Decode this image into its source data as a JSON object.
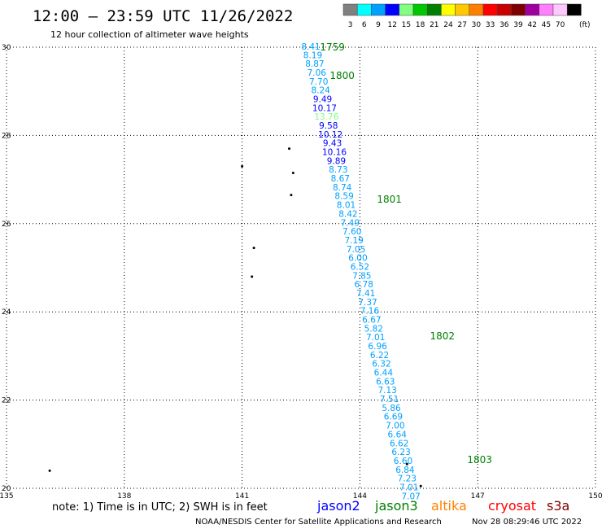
{
  "header": {
    "title": "12:00 – 23:59 UTC 11/26/2022",
    "subtitle": "12 hour collection of altimeter wave heights"
  },
  "legend": {
    "unit": "(ft)",
    "bins": [
      {
        "label": "3",
        "color": "#808080"
      },
      {
        "label": "6",
        "color": "#00ffff"
      },
      {
        "label": "9",
        "color": "#00a0ff"
      },
      {
        "label": "12",
        "color": "#0000ff"
      },
      {
        "label": "15",
        "color": "#80ff80"
      },
      {
        "label": "18",
        "color": "#00c800"
      },
      {
        "label": "21",
        "color": "#008000"
      },
      {
        "label": "24",
        "color": "#ffff00"
      },
      {
        "label": "27",
        "color": "#ffc800"
      },
      {
        "label": "30",
        "color": "#ff8000"
      },
      {
        "label": "33",
        "color": "#ff0000"
      },
      {
        "label": "36",
        "color": "#c80000"
      },
      {
        "label": "39",
        "color": "#800000"
      },
      {
        "label": "42",
        "color": "#a000a0"
      },
      {
        "label": "45",
        "color": "#ff80ff"
      },
      {
        "label": "70",
        "color": "#ffc8ff"
      },
      {
        "label": "",
        "color": "#000000"
      }
    ]
  },
  "footer": {
    "note": "note: 1) Time is in UTC; 2) SWH is in feet",
    "credit": "NOAA/NESDIS Center for Satellite Applications and Research",
    "timestamp": "Nov 28 08:29:46 UTC 2022",
    "satellites": [
      {
        "name": "jason2",
        "color": "#0000ff"
      },
      {
        "name": "jason3",
        "color": "#008000"
      },
      {
        "name": "altika",
        "color": "#ff8000"
      },
      {
        "name": "cryosat",
        "color": "#ff0000"
      },
      {
        "name": "s3a",
        "color": "#800000"
      }
    ]
  },
  "chart_data": {
    "type": "scatter",
    "xlim": [
      135,
      150
    ],
    "ylim": [
      20,
      30
    ],
    "xticks": [
      "135",
      "138",
      "141",
      "144",
      "147",
      "150"
    ],
    "yticks": [
      "20",
      "22",
      "24",
      "26",
      "28",
      "30"
    ],
    "grid": true,
    "track_color_light": "#00a0ff",
    "track_color_med": "#0000ff",
    "track_color_high": "#80ff80",
    "time_color": "#008000",
    "track": [
      {
        "lon": 142.75,
        "lat": 30.0,
        "swh": "8.41"
      },
      {
        "lon": 142.8,
        "lat": 29.81,
        "swh": "8.19"
      },
      {
        "lon": 142.85,
        "lat": 29.61,
        "swh": "8.87"
      },
      {
        "lon": 142.9,
        "lat": 29.41,
        "swh": "7.06"
      },
      {
        "lon": 142.95,
        "lat": 29.21,
        "swh": "7.70"
      },
      {
        "lon": 143.0,
        "lat": 29.01,
        "swh": "8.24"
      },
      {
        "lon": 143.05,
        "lat": 28.81,
        "swh": "9.49"
      },
      {
        "lon": 143.1,
        "lat": 28.61,
        "swh": "10.17"
      },
      {
        "lon": 143.15,
        "lat": 28.41,
        "swh": "13.76"
      },
      {
        "lon": 143.2,
        "lat": 28.21,
        "swh": "9.58"
      },
      {
        "lon": 143.25,
        "lat": 28.01,
        "swh": "10.12"
      },
      {
        "lon": 143.3,
        "lat": 27.81,
        "swh": "9.43"
      },
      {
        "lon": 143.35,
        "lat": 27.61,
        "swh": "10.16"
      },
      {
        "lon": 143.4,
        "lat": 27.41,
        "swh": "9.89"
      },
      {
        "lon": 143.45,
        "lat": 27.21,
        "swh": "8.73"
      },
      {
        "lon": 143.5,
        "lat": 27.01,
        "swh": "8.67"
      },
      {
        "lon": 143.55,
        "lat": 26.81,
        "swh": "8.74"
      },
      {
        "lon": 143.6,
        "lat": 26.61,
        "swh": "8.59"
      },
      {
        "lon": 143.65,
        "lat": 26.41,
        "swh": "8.01"
      },
      {
        "lon": 143.7,
        "lat": 26.21,
        "swh": "8.42"
      },
      {
        "lon": 143.75,
        "lat": 26.01,
        "swh": "7.49"
      },
      {
        "lon": 143.8,
        "lat": 25.81,
        "swh": "7.60"
      },
      {
        "lon": 143.85,
        "lat": 25.61,
        "swh": "7.19"
      },
      {
        "lon": 143.9,
        "lat": 25.41,
        "swh": "7.05"
      },
      {
        "lon": 143.95,
        "lat": 25.21,
        "swh": "6.00"
      },
      {
        "lon": 144.0,
        "lat": 25.01,
        "swh": "6.52"
      },
      {
        "lon": 144.05,
        "lat": 24.81,
        "swh": "7.85"
      },
      {
        "lon": 144.1,
        "lat": 24.61,
        "swh": "6.78"
      },
      {
        "lon": 144.15,
        "lat": 24.41,
        "swh": "7.41"
      },
      {
        "lon": 144.2,
        "lat": 24.21,
        "swh": "7.37"
      },
      {
        "lon": 144.25,
        "lat": 24.01,
        "swh": "7.16"
      },
      {
        "lon": 144.3,
        "lat": 23.81,
        "swh": "6.67"
      },
      {
        "lon": 144.35,
        "lat": 23.61,
        "swh": "5.82"
      },
      {
        "lon": 144.4,
        "lat": 23.41,
        "swh": "7.01"
      },
      {
        "lon": 144.45,
        "lat": 23.21,
        "swh": "6.96"
      },
      {
        "lon": 144.5,
        "lat": 23.01,
        "swh": "6.22"
      },
      {
        "lon": 144.55,
        "lat": 22.81,
        "swh": "6.32"
      },
      {
        "lon": 144.6,
        "lat": 22.61,
        "swh": "6.44"
      },
      {
        "lon": 144.65,
        "lat": 22.41,
        "swh": "6.63"
      },
      {
        "lon": 144.7,
        "lat": 22.21,
        "swh": "7.13"
      },
      {
        "lon": 144.75,
        "lat": 22.01,
        "swh": "7.51"
      },
      {
        "lon": 144.8,
        "lat": 21.81,
        "swh": "5.86"
      },
      {
        "lon": 144.85,
        "lat": 21.61,
        "swh": "6.69"
      },
      {
        "lon": 144.9,
        "lat": 21.41,
        "swh": "7.00"
      },
      {
        "lon": 144.95,
        "lat": 21.21,
        "swh": "6.64"
      },
      {
        "lon": 145.0,
        "lat": 21.01,
        "swh": "6.62"
      },
      {
        "lon": 145.05,
        "lat": 20.81,
        "swh": "6.23"
      },
      {
        "lon": 145.1,
        "lat": 20.61,
        "swh": "6.60"
      },
      {
        "lon": 145.15,
        "lat": 20.41,
        "swh": "6.84"
      },
      {
        "lon": 145.2,
        "lat": 20.21,
        "swh": "7.23"
      },
      {
        "lon": 145.25,
        "lat": 20.01,
        "swh": "7.01"
      },
      {
        "lon": 145.3,
        "lat": 19.81,
        "swh": "7.07"
      }
    ],
    "time_labels": [
      {
        "lon": 143.3,
        "lat": 30.0,
        "label": "1759"
      },
      {
        "lon": 143.55,
        "lat": 29.35,
        "label": "1800"
      },
      {
        "lon": 144.75,
        "lat": 26.55,
        "label": "1801"
      },
      {
        "lon": 146.1,
        "lat": 23.45,
        "label": "1802"
      },
      {
        "lon": 147.05,
        "lat": 20.65,
        "label": "1803"
      }
    ],
    "islands": [
      {
        "lon": 142.2,
        "lat": 27.7
      },
      {
        "lon": 142.3,
        "lat": 27.15
      },
      {
        "lon": 142.25,
        "lat": 26.65
      },
      {
        "lon": 141.0,
        "lat": 27.3
      },
      {
        "lon": 141.3,
        "lat": 25.45
      },
      {
        "lon": 141.25,
        "lat": 24.8
      },
      {
        "lon": 145.2,
        "lat": 20.55
      },
      {
        "lon": 145.55,
        "lat": 20.05
      },
      {
        "lon": 136.1,
        "lat": 20.4
      }
    ]
  }
}
